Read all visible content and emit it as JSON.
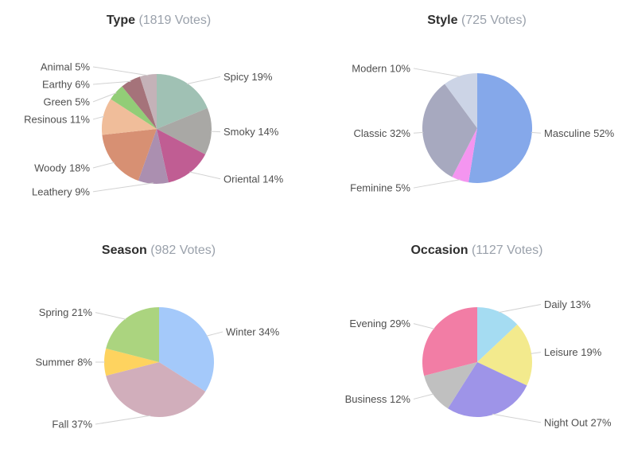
{
  "page": {
    "background": "#ffffff",
    "label_format": "{label} {pct}%"
  },
  "chart_data": [
    {
      "type": "pie",
      "title": "Type",
      "subtitle": "(1819 Votes)",
      "legend": "none",
      "label_style": "outside-leader-lines",
      "slices": [
        {
          "label": "Spicy",
          "pct": 19,
          "color": "#a0c1b4"
        },
        {
          "label": "Smoky",
          "pct": 14,
          "color": "#a9a8a5"
        },
        {
          "label": "Oriental",
          "pct": 14,
          "color": "#c05d93"
        },
        {
          "label": "Leathery",
          "pct": 9,
          "color": "#ab8fb0"
        },
        {
          "label": "Woody",
          "pct": 18,
          "color": "#d79073"
        },
        {
          "label": "Resinous",
          "pct": 11,
          "color": "#f0bd9a"
        },
        {
          "label": "Green",
          "pct": 5,
          "color": "#92cd77"
        },
        {
          "label": "Earthy",
          "pct": 6,
          "color": "#a5737a"
        },
        {
          "label": "Animal",
          "pct": 5,
          "color": "#c4b2b8"
        }
      ]
    },
    {
      "type": "pie",
      "title": "Style",
      "subtitle": "(725 Votes)",
      "legend": "none",
      "label_style": "outside-leader-lines",
      "slices": [
        {
          "label": "Masculine",
          "pct": 52,
          "color": "#85a8ea"
        },
        {
          "label": "Feminine",
          "pct": 5,
          "color": "#f495f0"
        },
        {
          "label": "Classic",
          "pct": 32,
          "color": "#a7a9bf"
        },
        {
          "label": "Modern",
          "pct": 10,
          "color": "#ccd4e6"
        }
      ]
    },
    {
      "type": "pie",
      "title": "Season",
      "subtitle": "(982 Votes)",
      "legend": "none",
      "label_style": "outside-leader-lines",
      "slices": [
        {
          "label": "Winter",
          "pct": 34,
          "color": "#a4c9fa"
        },
        {
          "label": "Fall",
          "pct": 37,
          "color": "#d1aebb"
        },
        {
          "label": "Summer",
          "pct": 8,
          "color": "#fed35f"
        },
        {
          "label": "Spring",
          "pct": 21,
          "color": "#abd47f"
        }
      ]
    },
    {
      "type": "pie",
      "title": "Occasion",
      "subtitle": "(1127 Votes)",
      "legend": "none",
      "label_style": "outside-leader-lines",
      "slices": [
        {
          "label": "Daily",
          "pct": 13,
          "color": "#a5dcf2"
        },
        {
          "label": "Leisure",
          "pct": 19,
          "color": "#f3ea8d"
        },
        {
          "label": "Night Out",
          "pct": 27,
          "color": "#9e94e8"
        },
        {
          "label": "Business",
          "pct": 12,
          "color": "#c0c0c0"
        },
        {
          "label": "Evening",
          "pct": 29,
          "color": "#f27da5"
        }
      ]
    }
  ]
}
